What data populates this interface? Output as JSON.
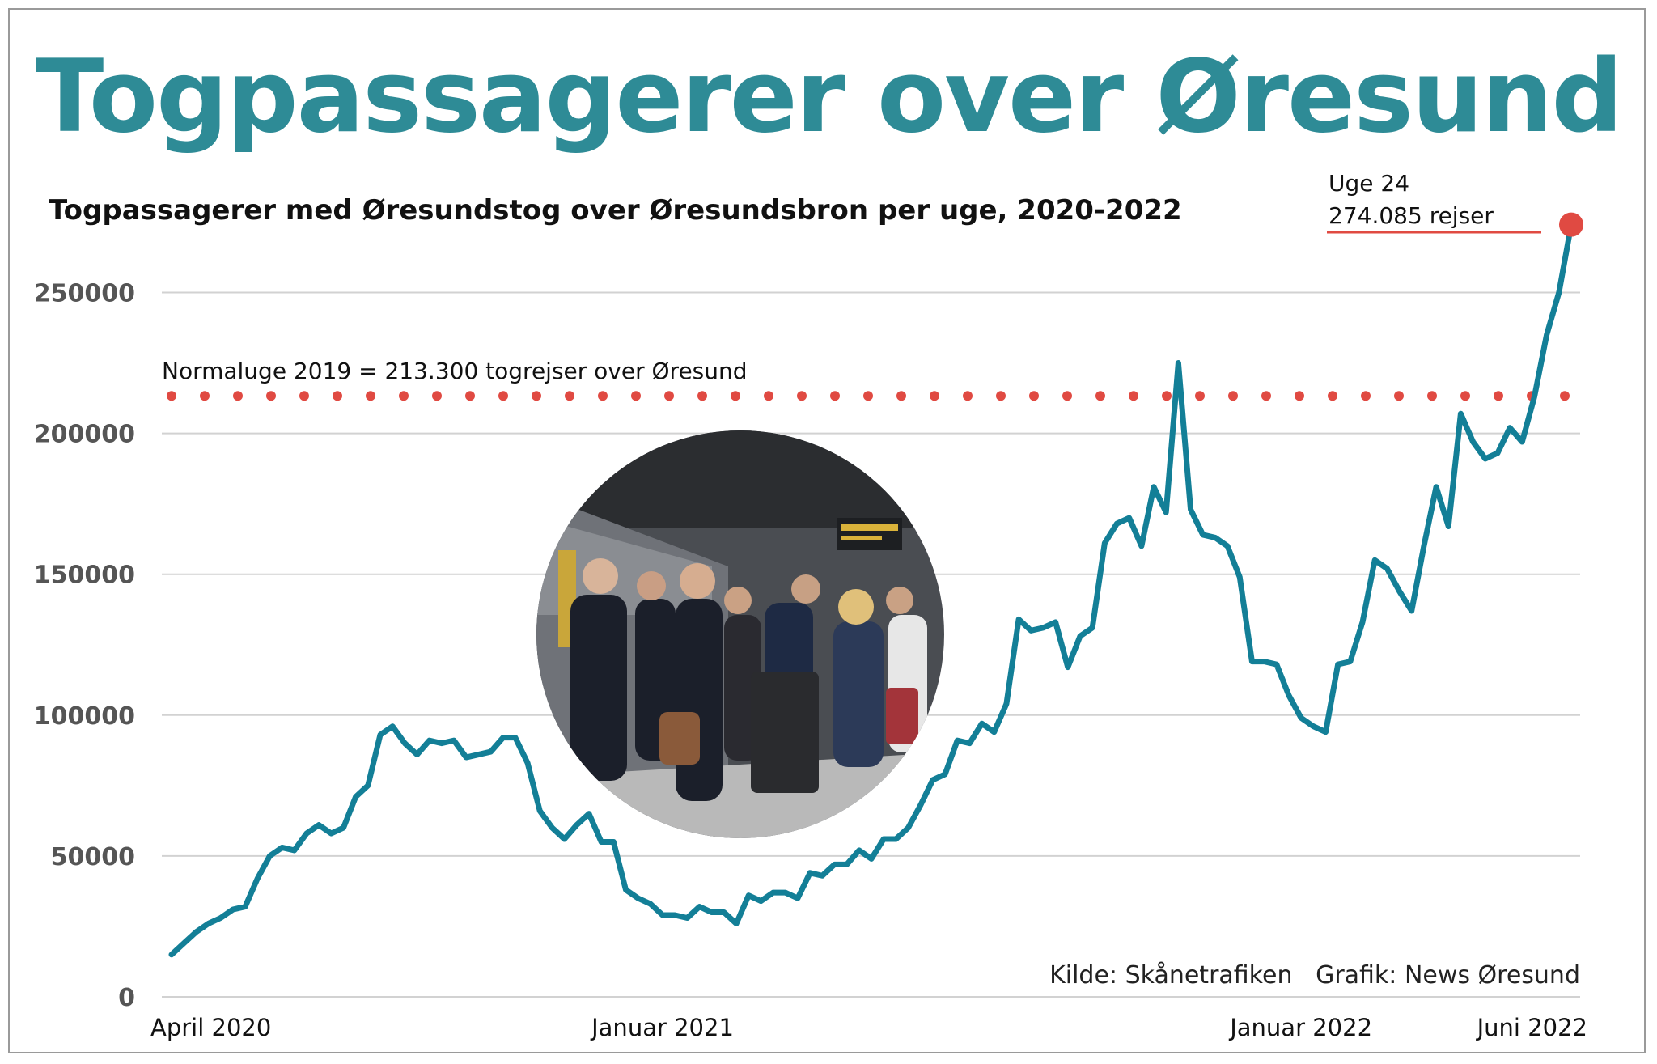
{
  "title": "Togpassagerer over Øresund",
  "chart_data": {
    "type": "line",
    "title": "Togpassagerer over Øresund",
    "subtitle": "Togpassagerer med Øresundstog over Øresundsbron per uge, 2020-2022",
    "ylim": [
      0,
      260000
    ],
    "yticks": [
      0,
      50000,
      100000,
      150000,
      200000,
      250000
    ],
    "ytick_labels": [
      "0",
      "50000",
      "100000",
      "150000",
      "200000",
      "250000"
    ],
    "xtick_labels": [
      {
        "label": "April 2020",
        "week_index": 0
      },
      {
        "label": "Januar 2021",
        "week_index": 40
      },
      {
        "label": "Januar 2022",
        "week_index": 92
      },
      {
        "label": "Juni 2022",
        "week_index": 114
      }
    ],
    "grid": true,
    "colors": {
      "line": "#137f97",
      "reference": "#e04a42",
      "title": "#2e8b96"
    },
    "series": [
      {
        "values": [
          15000,
          19000,
          23000,
          26000,
          28000,
          31000,
          32000,
          42000,
          50000,
          53000,
          52000,
          58000,
          61000,
          58000,
          60000,
          71000,
          75000,
          93000,
          96000,
          90000,
          86000,
          91000,
          90000,
          91000,
          85000,
          86000,
          87000,
          92000,
          92000,
          83000,
          66000,
          60000,
          56000,
          61000,
          65000,
          55000,
          55000,
          38000,
          35000,
          33000,
          29000,
          29000,
          28000,
          32000,
          30000,
          30000,
          26000,
          36000,
          34000,
          37000,
          37000,
          35000,
          44000,
          43000,
          47000,
          47000,
          52000,
          49000,
          56000,
          56000,
          60000,
          68000,
          77000,
          79000,
          91000,
          90000,
          97000,
          94000,
          104000,
          134000,
          130000,
          131000,
          133000,
          117000,
          128000,
          131000,
          161000,
          168000,
          170000,
          160000,
          181000,
          172000,
          225000,
          173000,
          164000,
          163000,
          160000,
          149000,
          119000,
          119000,
          118000,
          107000,
          99000,
          96000,
          94000,
          118000,
          119000,
          133000,
          155000,
          152000,
          144000,
          137000,
          160000,
          181000,
          167000,
          207000,
          197000,
          191000,
          193000,
          202000,
          197000,
          213000,
          235000,
          250000,
          274085
        ]
      }
    ],
    "reference_line": {
      "value": 213300,
      "label": "Normaluge 2019 = 213.300 togrejser over Øresund"
    },
    "annotation": {
      "week_label": "Uge 24",
      "value_label": "274.085 rejser",
      "value": 274085
    },
    "source": "Kilde: Skånetrafiken   Grafik: News Øresund"
  }
}
